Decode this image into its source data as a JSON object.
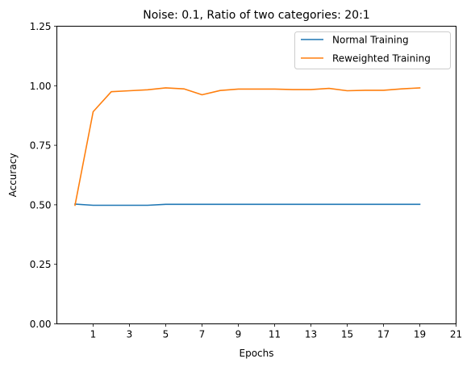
{
  "chart_data": {
    "type": "line",
    "title": "Noise: 0.1, Ratio of two categories: 20:1",
    "xlabel": "Epochs",
    "ylabel": "Accuracy",
    "xlim": [
      -1,
      21
    ],
    "ylim": [
      0.0,
      1.25
    ],
    "xticks": [
      1,
      3,
      5,
      7,
      9,
      11,
      13,
      15,
      17,
      19,
      21
    ],
    "yticks": [
      0.0,
      0.25,
      0.5,
      0.75,
      1.0,
      1.25
    ],
    "ytick_labels": [
      "0.00",
      "0.25",
      "0.50",
      "0.75",
      "1.00",
      "1.25"
    ],
    "grid": false,
    "legend_position": "top-right",
    "x": [
      0,
      1,
      2,
      3,
      4,
      5,
      6,
      7,
      8,
      9,
      10,
      11,
      12,
      13,
      14,
      15,
      16,
      17,
      18,
      19
    ],
    "series": [
      {
        "name": "Normal Training",
        "color": "#1f77b4",
        "values": [
          0.503,
          0.498,
          0.498,
          0.498,
          0.498,
          0.502,
          0.502,
          0.502,
          0.502,
          0.502,
          0.502,
          0.502,
          0.502,
          0.502,
          0.502,
          0.502,
          0.502,
          0.502,
          0.502,
          0.502
        ]
      },
      {
        "name": "Reweighted Training",
        "color": "#ff7f0e",
        "values": [
          0.498,
          0.891,
          0.975,
          0.979,
          0.983,
          0.991,
          0.987,
          0.962,
          0.98,
          0.986,
          0.986,
          0.986,
          0.984,
          0.984,
          0.989,
          0.979,
          0.981,
          0.981,
          0.987,
          0.991
        ]
      }
    ]
  }
}
